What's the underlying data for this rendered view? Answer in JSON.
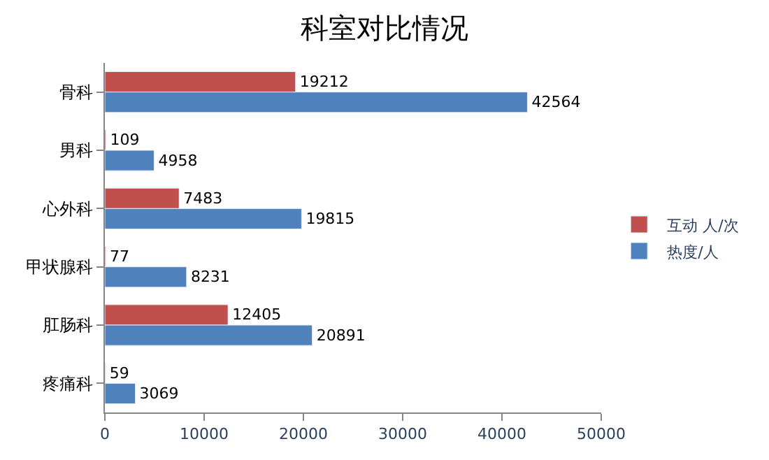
{
  "chart_data": {
    "type": "bar",
    "orientation": "horizontal",
    "title": "科室对比情况",
    "categories": [
      "骨科",
      "男科",
      "心外科",
      "甲状腺科",
      "肛肠科",
      "疼痛科"
    ],
    "series": [
      {
        "name": "互动 人/次",
        "color": "#c0504d",
        "values": [
          19212,
          109,
          7483,
          77,
          12405,
          59
        ]
      },
      {
        "name": "热度/人",
        "color": "#4f81bd",
        "values": [
          42564,
          4958,
          19815,
          8231,
          20891,
          3069
        ]
      }
    ],
    "xlim": [
      0,
      50000
    ],
    "xticks": [
      0,
      10000,
      20000,
      30000,
      40000,
      50000
    ],
    "data_labels": true,
    "legend": "right"
  }
}
